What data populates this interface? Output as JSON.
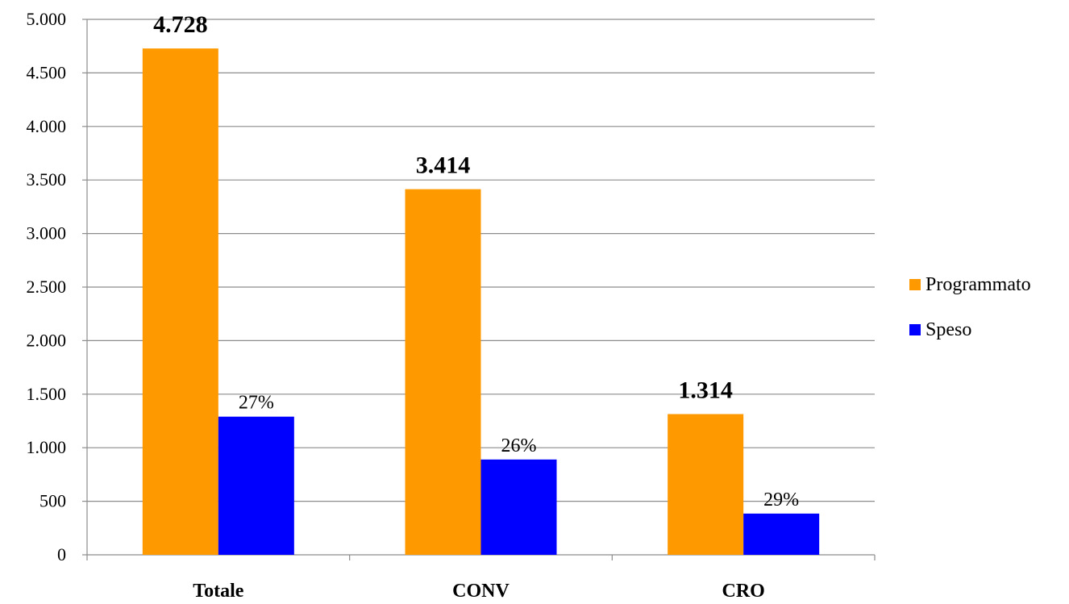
{
  "chart_data": {
    "type": "bar",
    "categories": [
      "Totale",
      "CONV",
      "CRO"
    ],
    "series": [
      {
        "name": "Programmato",
        "color": "#FF9900",
        "values": [
          4728,
          3414,
          1314
        ],
        "labels": [
          "4.728",
          "3.414",
          "1.314"
        ]
      },
      {
        "name": "Speso",
        "color": "#0000FF",
        "values": [
          1290,
          890,
          385
        ],
        "labels": [
          "27%",
          "26%",
          "29%"
        ]
      }
    ],
    "ylim": [
      0,
      5000
    ],
    "yticks": [
      0,
      500,
      1000,
      1500,
      2000,
      2500,
      3000,
      3500,
      4000,
      4500,
      5000
    ],
    "ytick_labels": [
      "0",
      "500",
      "1.000",
      "1.500",
      "2.000",
      "2.500",
      "3.000",
      "3.500",
      "4.000",
      "4.500",
      "5.000"
    ],
    "grid": true,
    "legend_position": "right",
    "title": "",
    "xlabel": "",
    "ylabel": ""
  }
}
